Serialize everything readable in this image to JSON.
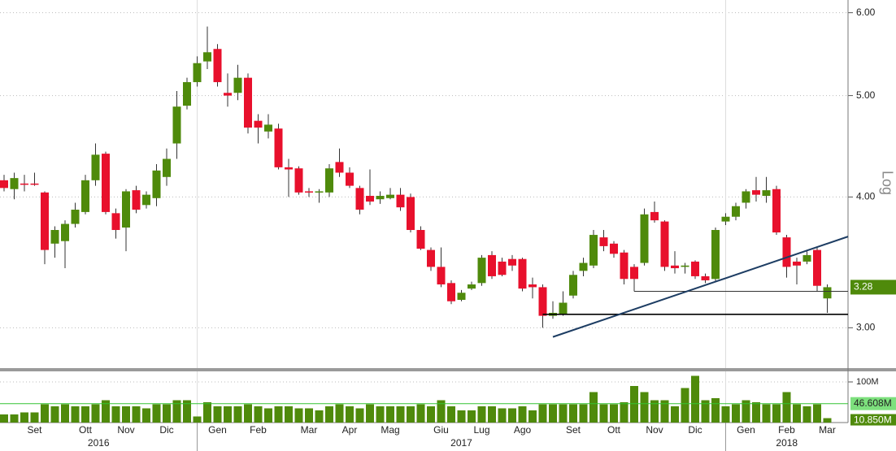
{
  "chart_data": {
    "type": "candlestick",
    "log_scale": true,
    "y_scale_label": "Log",
    "categories": [
      null,
      null,
      null,
      "Set",
      null,
      null,
      null,
      null,
      "Ott",
      null,
      null,
      null,
      "Nov",
      null,
      null,
      null,
      "Dic",
      null,
      null,
      null,
      null,
      "Gen",
      null,
      null,
      null,
      "Feb",
      null,
      null,
      null,
      null,
      "Mar",
      null,
      null,
      null,
      "Apr",
      null,
      null,
      null,
      "Mag",
      null,
      null,
      null,
      null,
      "Giu",
      null,
      null,
      null,
      "Lug",
      null,
      null,
      null,
      "Ago",
      null,
      null,
      null,
      null,
      "Set",
      null,
      null,
      null,
      "Ott",
      null,
      null,
      null,
      "Nov",
      null,
      null,
      null,
      "Dic",
      null,
      null,
      null,
      null,
      "Gen",
      null,
      null,
      null,
      "Feb",
      null,
      null,
      null,
      "Mar"
    ],
    "years": [
      "2016",
      "2017",
      "2018"
    ],
    "open": [
      4.15,
      4.07,
      4.12,
      4.12,
      4.04,
      3.61,
      3.63,
      3.77,
      3.87,
      4.15,
      4.4,
      3.86,
      3.74,
      4.06,
      3.93,
      3.99,
      4.18,
      4.5,
      4.89,
      5.15,
      5.39,
      5.54,
      5.03,
      5.03,
      5.2,
      4.73,
      4.62,
      4.65,
      4.27,
      4.26,
      4.05,
      4.04,
      4.04,
      4.32,
      4.22,
      4.08,
      4.01,
      3.98,
      3.99,
      4.02,
      4.0,
      3.72,
      3.56,
      3.43,
      3.31,
      3.19,
      3.27,
      3.31,
      3.52,
      3.47,
      3.49,
      3.49,
      3.3,
      3.28,
      3.08,
      3.09,
      3.22,
      3.4,
      3.44,
      3.66,
      3.61,
      3.54,
      3.43,
      3.46,
      3.87,
      3.79,
      3.44,
      3.43,
      3.47,
      3.36,
      3.34,
      3.79,
      3.83,
      3.95,
      4.06,
      4.01,
      4.07,
      3.66,
      3.47,
      3.47,
      3.56,
      3.2
    ],
    "high": [
      4.2,
      4.22,
      4.2,
      4.22,
      4.05,
      3.75,
      3.8,
      3.95,
      4.2,
      4.5,
      4.42,
      3.9,
      4.07,
      4.1,
      4.05,
      4.3,
      4.45,
      5.05,
      5.2,
      5.45,
      5.82,
      5.6,
      5.25,
      5.35,
      5.25,
      4.8,
      4.8,
      4.7,
      4.35,
      4.28,
      4.08,
      4.07,
      4.3,
      4.45,
      4.27,
      4.1,
      4.25,
      4.05,
      4.08,
      4.08,
      4.03,
      3.75,
      3.58,
      3.58,
      3.33,
      3.26,
      3.32,
      3.52,
      3.55,
      3.5,
      3.52,
      3.5,
      3.35,
      3.3,
      3.18,
      3.25,
      3.4,
      3.5,
      3.72,
      3.72,
      3.63,
      3.56,
      3.45,
      3.9,
      3.96,
      3.8,
      3.55,
      3.46,
      3.48,
      3.38,
      3.74,
      3.86,
      3.95,
      4.07,
      4.18,
      4.18,
      4.1,
      3.68,
      3.5,
      3.55,
      3.58,
      3.3
    ],
    "low": [
      4.05,
      3.98,
      4.05,
      4.1,
      3.45,
      3.5,
      3.42,
      3.74,
      3.85,
      4.1,
      3.85,
      3.65,
      3.55,
      3.86,
      3.9,
      3.92,
      4.1,
      4.35,
      4.85,
      5.1,
      5.3,
      5.1,
      4.88,
      4.95,
      4.6,
      4.5,
      4.55,
      4.25,
      4.0,
      4.02,
      4.0,
      3.95,
      4.0,
      4.18,
      4.08,
      3.85,
      3.93,
      3.94,
      3.98,
      3.88,
      3.7,
      3.56,
      3.4,
      3.28,
      3.16,
      3.18,
      3.26,
      3.29,
      3.34,
      3.36,
      3.4,
      3.25,
      3.2,
      3.0,
      3.06,
      3.08,
      3.2,
      3.36,
      3.42,
      3.55,
      3.5,
      3.3,
      3.25,
      3.44,
      3.78,
      3.4,
      3.38,
      3.38,
      3.34,
      3.31,
      3.32,
      3.76,
      3.8,
      3.9,
      3.96,
      3.95,
      3.68,
      3.35,
      3.3,
      3.45,
      3.25,
      3.1
    ],
    "close": [
      4.08,
      4.17,
      4.11,
      4.11,
      3.56,
      3.72,
      3.77,
      3.89,
      4.15,
      4.39,
      3.87,
      3.72,
      4.05,
      3.89,
      4.02,
      4.24,
      4.35,
      4.88,
      5.15,
      5.37,
      5.5,
      5.15,
      5.0,
      5.2,
      4.66,
      4.66,
      4.69,
      4.27,
      4.25,
      4.04,
      4.04,
      4.05,
      4.26,
      4.22,
      4.1,
      3.89,
      3.96,
      4.01,
      4.02,
      3.91,
      3.72,
      3.57,
      3.43,
      3.3,
      3.18,
      3.24,
      3.3,
      3.5,
      3.36,
      3.37,
      3.44,
      3.27,
      3.28,
      3.08,
      3.1,
      3.17,
      3.37,
      3.46,
      3.68,
      3.59,
      3.53,
      3.34,
      3.34,
      3.85,
      3.8,
      3.43,
      3.42,
      3.44,
      3.36,
      3.33,
      3.72,
      3.83,
      3.92,
      4.05,
      4.02,
      4.06,
      3.7,
      3.43,
      3.44,
      3.52,
      3.29,
      3.28
    ],
    "volume": [
      20,
      20,
      25,
      25,
      45,
      40,
      45,
      40,
      40,
      45,
      55,
      40,
      40,
      40,
      35,
      45,
      45,
      55,
      55,
      15,
      50,
      40,
      40,
      40,
      45,
      40,
      35,
      40,
      40,
      35,
      35,
      30,
      40,
      45,
      40,
      35,
      45,
      40,
      40,
      40,
      40,
      45,
      40,
      55,
      40,
      30,
      30,
      40,
      40,
      35,
      35,
      40,
      30,
      45,
      45,
      45,
      45,
      45,
      75,
      45,
      45,
      50,
      90,
      75,
      55,
      55,
      40,
      85,
      115,
      55,
      60,
      40,
      45,
      55,
      50,
      45,
      45,
      75,
      45,
      40,
      45,
      10.85
    ],
    "last_volume_label": "10.850M",
    "up_color": "#4f8a0b",
    "down_color": "#e8102c",
    "volume_color": "#4f8a0b",
    "ylim": [
      2.75,
      6.17
    ],
    "yticks": [
      {
        "value": 3,
        "label": "3.00"
      },
      {
        "value": 4,
        "label": "4.00"
      },
      {
        "value": 5,
        "label": "5.00"
      },
      {
        "value": 6,
        "label": "6.00"
      }
    ],
    "volume_ylim": [
      0,
      124
    ],
    "volume_yticks": [
      {
        "value": 100,
        "label": "100M"
      }
    ],
    "volume_average": {
      "value": 46.608,
      "label": "46.608M",
      "color": "#33c433"
    },
    "levels": [
      {
        "value": 3.09,
        "start": 53,
        "color": "#000000"
      },
      {
        "value": 3.25,
        "start": 62,
        "color": "#333333"
      }
    ],
    "trendline": {
      "start": [
        54,
        2.94
      ],
      "end": [
        81,
        3.61
      ],
      "color": "#1d3d63"
    },
    "grid": true
  }
}
